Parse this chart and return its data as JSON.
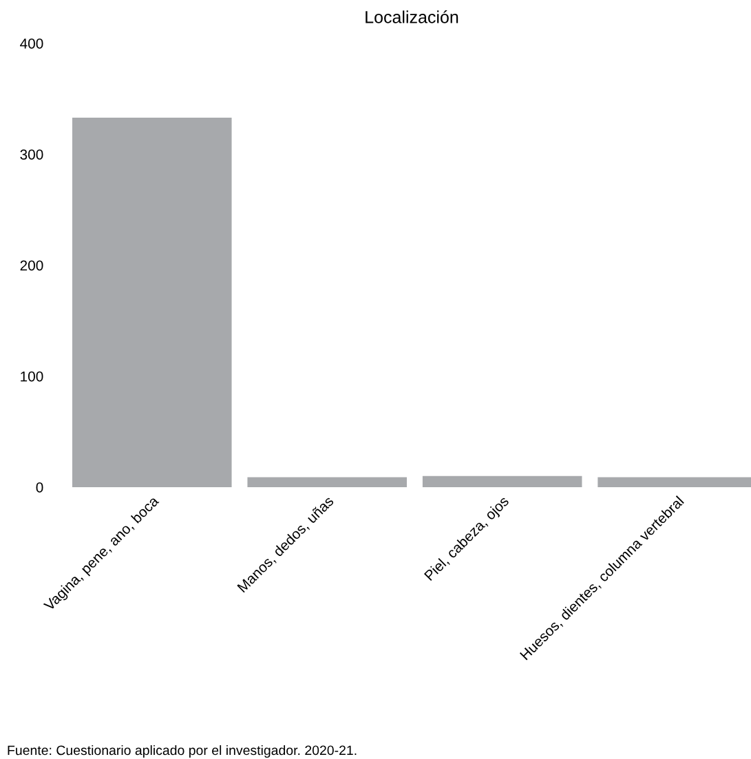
{
  "chart_data": {
    "type": "bar",
    "title": "Localización",
    "categories": [
      "Vagina, pene, ano, boca",
      "Manos, dedos, uñas",
      "Piel, cabeza, ojos",
      "Huesos, dientes, columna vertebral"
    ],
    "values": [
      333,
      9,
      10,
      9
    ],
    "color": "#a7a9ac",
    "ylim": [
      0,
      400
    ],
    "yticks": [
      0,
      100,
      200,
      300,
      400
    ],
    "grid": false,
    "annotations": [
      "Fuente: Cuestionario aplicado por el investigador. 2020-21."
    ]
  }
}
